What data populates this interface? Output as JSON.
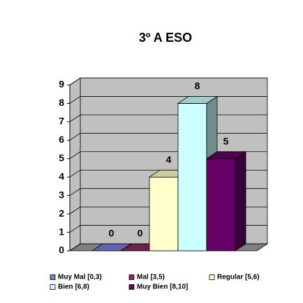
{
  "chart_data": {
    "type": "bar3d",
    "title": "3º A ESO",
    "series": [
      {
        "name": "Muy Mal [0,3)",
        "color": "#7b7bd8",
        "values": [
          0
        ]
      },
      {
        "name": "Mal [3,5)",
        "color": "#8a2a5a",
        "values": [
          0
        ]
      },
      {
        "name": "Regular [5,6)",
        "color": "#ffffcc",
        "values": [
          4
        ]
      },
      {
        "name": "Bien [6,8)",
        "color": "#ccffff",
        "values": [
          8
        ]
      },
      {
        "name": "Muy Bien [8,10]",
        "color": "#660066",
        "values": [
          5
        ]
      }
    ],
    "ylim": [
      0,
      9
    ],
    "yticks": [
      0,
      1,
      2,
      3,
      4,
      5,
      6,
      7,
      8,
      9
    ],
    "grid": true,
    "legend": "bottom"
  }
}
